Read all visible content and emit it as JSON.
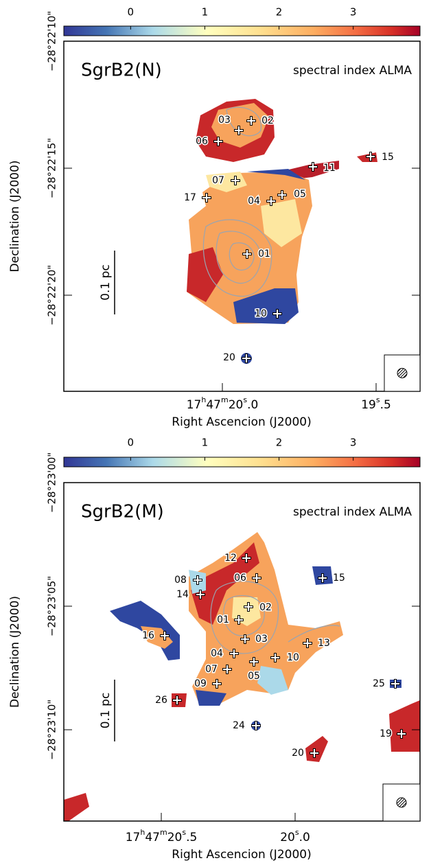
{
  "panels": [
    {
      "title": "SgrB2(N)",
      "label": "spectral index ALMA",
      "colorbar": {
        "range": [
          -0.9,
          3.9
        ],
        "ticks": [
          0,
          1,
          2,
          3
        ]
      },
      "y_ticks": [
        "−28°22'10\"",
        "−28°22'15\"",
        "−28°22'20\""
      ],
      "x_ticks": [
        [
          "17",
          "h",
          "47",
          "m",
          "20",
          "s",
          ".0"
        ],
        [
          "19",
          "s",
          ".5"
        ]
      ],
      "x_axis_label": "Right Ascencion (J2000)",
      "y_axis_label": "Declination (J2000)",
      "scale_bar": "0.1 pc",
      "sources": [
        "03",
        "02",
        "06",
        "11",
        "15",
        "07",
        "17",
        "05",
        "04",
        "01",
        "10",
        "20"
      ]
    },
    {
      "title": "SgrB2(M)",
      "label": "spectral index ALMA",
      "colorbar": {
        "range": [
          -0.9,
          3.9
        ],
        "ticks": [
          0,
          1,
          2,
          3
        ]
      },
      "y_ticks": [
        "−28°23'00\"",
        "−28°23'05\"",
        "−28°23'10\""
      ],
      "x_ticks": [
        [
          "17",
          "h",
          "47",
          "m",
          "20",
          "s",
          ".5"
        ],
        [
          "20",
          "s",
          ".0"
        ]
      ],
      "x_axis_label": "Right Ascencion (J2000)",
      "y_axis_label": "Declination (J2000)",
      "scale_bar": "0.1 pc",
      "sources": [
        "12",
        "15",
        "08",
        "06",
        "14",
        "02",
        "01",
        "16",
        "03",
        "13",
        "04",
        "10",
        "05",
        "07",
        "09",
        "25",
        "26",
        "24",
        "19",
        "20"
      ]
    }
  ]
}
